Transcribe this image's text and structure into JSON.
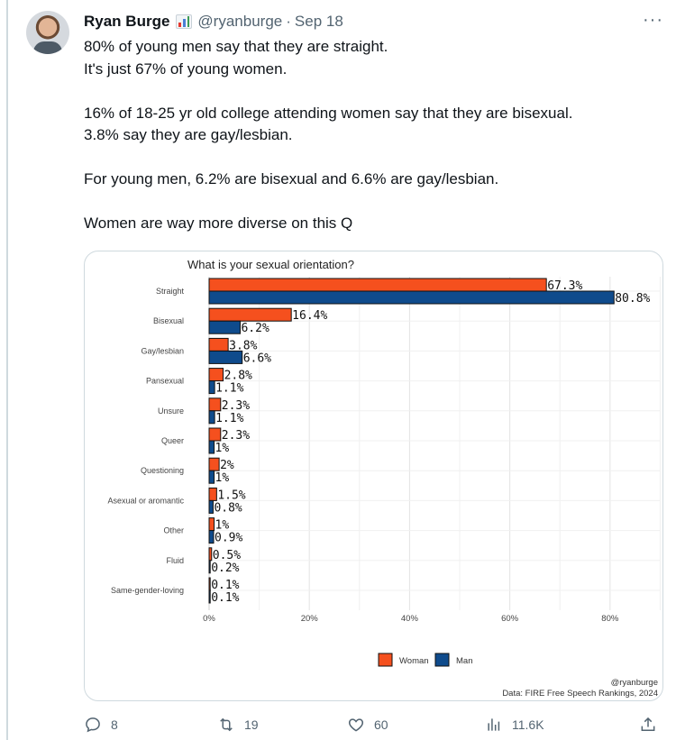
{
  "author": {
    "name": "Ryan Burge",
    "handle": "@ryanburge",
    "separator": "·",
    "date": "Sep 18",
    "badge_icon": "bar-chart-emoji-icon"
  },
  "more_menu_label": "···",
  "tweet_text": {
    "line1": "80% of young men say that they are straight.",
    "line2": "It's just 67% of young women.",
    "line3": "16% of 18-25 yr old college attending women say that they are bisexual.",
    "line4": "3.8% say they are gay/lesbian.",
    "line5": "For young men, 6.2% are bisexual and 6.6% are gay/lesbian.",
    "line6": "Women are way more diverse on this Q"
  },
  "actions": {
    "replies": "8",
    "reposts": "19",
    "likes": "60",
    "views": "11.6K"
  },
  "chart_data": {
    "type": "bar",
    "orientation": "horizontal",
    "title": "What is your sexual orientation?",
    "categories": [
      "Straight",
      "Bisexual",
      "Gay/lesbian",
      "Pansexual",
      "Unsure",
      "Queer",
      "Questioning",
      "Asexual or aromantic",
      "Other",
      "Fluid",
      "Same-gender-loving"
    ],
    "series": [
      {
        "name": "Woman",
        "color": "#f5501e",
        "values": [
          67.3,
          16.4,
          3.8,
          2.8,
          2.3,
          2.3,
          2,
          1.5,
          1,
          0.5,
          0.1
        ],
        "labels": [
          "67.3%",
          "16.4%",
          "3.8%",
          "2.8%",
          "2.3%",
          "2.3%",
          "2%",
          "1.5%",
          "1%",
          "0.5%",
          "0.1%"
        ]
      },
      {
        "name": "Man",
        "color": "#0f4b8c",
        "values": [
          80.8,
          6.2,
          6.6,
          1.1,
          1.1,
          1,
          1,
          0.8,
          0.9,
          0.2,
          0.1
        ],
        "labels": [
          "80.8%",
          "6.2%",
          "6.6%",
          "1.1%",
          "1.1%",
          "1%",
          "1%",
          "0.8%",
          "0.9%",
          "0.2%",
          "0.1%"
        ]
      }
    ],
    "x_ticks": [
      "0%",
      "20%",
      "40%",
      "60%",
      "80%"
    ],
    "xlim": [
      0,
      90
    ],
    "grid": true,
    "legend_position": "bottom",
    "credit": "@ryanburge",
    "source": "Data: FIRE Free Speech Rankings, 2024"
  }
}
